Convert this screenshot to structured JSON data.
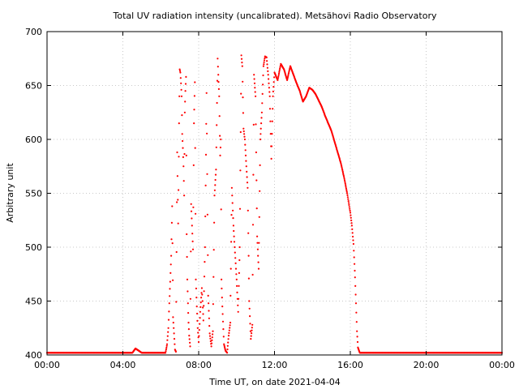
{
  "chart_data": {
    "type": "scatter",
    "title": "Total UV radiation intensity (uncalibrated). Metsähovi Radio Observatory",
    "xlabel": "Time UT, on date 2021-04-04",
    "ylabel": "Arbitrary unit",
    "xlim": [
      "00:00",
      "24:00"
    ],
    "ylim": [
      400,
      700
    ],
    "x_ticks": [
      "00:00",
      "04:00",
      "08:00",
      "12:00",
      "16:00",
      "20:00",
      "00:00"
    ],
    "y_ticks": [
      400,
      450,
      500,
      550,
      600,
      650,
      700
    ],
    "grid": true,
    "legend": "none",
    "marker_color": "#ff0000",
    "series": [
      {
        "points": [
          [
            "00:00",
            402
          ],
          [
            "00:30",
            402
          ],
          [
            "01:00",
            402
          ],
          [
            "01:30",
            402
          ],
          [
            "02:00",
            402
          ],
          [
            "02:30",
            402
          ],
          [
            "03:00",
            402
          ],
          [
            "03:30",
            402
          ],
          [
            "04:00",
            402
          ],
          [
            "04:30",
            402
          ],
          [
            "04:40",
            406
          ],
          [
            "05:00",
            402
          ],
          [
            "05:30",
            402
          ],
          [
            "06:00",
            402
          ],
          [
            "06:15",
            402
          ],
          [
            "06:20",
            410
          ],
          [
            "06:24",
            425
          ],
          [
            "06:27",
            448
          ],
          [
            "06:30",
            468
          ],
          [
            "06:33",
            492
          ],
          [
            "06:36",
            538
          ],
          [
            "06:39",
            435
          ],
          [
            "06:42",
            420
          ],
          [
            "06:45",
            405
          ],
          [
            "06:48",
            403
          ],
          [
            "06:52",
            588
          ],
          [
            "06:55",
            522
          ],
          [
            "06:58",
            615
          ],
          [
            "07:00",
            665
          ],
          [
            "07:02",
            662
          ],
          [
            "07:04",
            652
          ],
          [
            "07:06",
            640
          ],
          [
            "07:08",
            605
          ],
          [
            "07:10",
            592
          ],
          [
            "07:12",
            575
          ],
          [
            "07:14",
            548
          ],
          [
            "07:16",
            625
          ],
          [
            "07:18",
            645
          ],
          [
            "07:20",
            658
          ],
          [
            "07:22",
            512
          ],
          [
            "07:24",
            470
          ],
          [
            "07:26",
            448
          ],
          [
            "07:28",
            430
          ],
          [
            "07:30",
            418
          ],
          [
            "07:33",
            408
          ],
          [
            "07:36",
            540
          ],
          [
            "07:39",
            520
          ],
          [
            "07:42",
            498
          ],
          [
            "07:45",
            615
          ],
          [
            "07:48",
            653
          ],
          [
            "07:51",
            470
          ],
          [
            "07:54",
            445
          ],
          [
            "07:57",
            425
          ],
          [
            "08:00",
            412
          ],
          [
            "08:05",
            440
          ],
          [
            "08:10",
            462
          ],
          [
            "08:15",
            432
          ],
          [
            "08:20",
            500
          ],
          [
            "08:25",
            643
          ],
          [
            "08:30",
            455
          ],
          [
            "08:35",
            420
          ],
          [
            "08:40",
            408
          ],
          [
            "08:45",
            422
          ],
          [
            "08:50",
            548
          ],
          [
            "08:55",
            572
          ],
          [
            "09:00",
            675
          ],
          [
            "09:02",
            660
          ],
          [
            "09:05",
            640
          ],
          [
            "09:08",
            585
          ],
          [
            "09:10",
            600
          ],
          [
            "09:12",
            470
          ],
          [
            "09:15",
            445
          ],
          [
            "09:20",
            410
          ],
          [
            "09:25",
            404
          ],
          [
            "09:30",
            402
          ],
          [
            "09:35",
            418
          ],
          [
            "09:40",
            430
          ],
          [
            "09:45",
            555
          ],
          [
            "09:50",
            520
          ],
          [
            "09:55",
            495
          ],
          [
            "10:00",
            470
          ],
          [
            "10:05",
            440
          ],
          [
            "10:10",
            500
          ],
          [
            "10:15",
            678
          ],
          [
            "10:18",
            668
          ],
          [
            "10:22",
            610
          ],
          [
            "10:26",
            600
          ],
          [
            "10:30",
            580
          ],
          [
            "10:35",
            555
          ],
          [
            "10:40",
            450
          ],
          [
            "10:45",
            415
          ],
          [
            "10:50",
            428
          ],
          [
            "10:55",
            660
          ],
          [
            "11:00",
            640
          ],
          [
            "11:05",
            510
          ],
          [
            "11:10",
            480
          ],
          [
            "11:15",
            600
          ],
          [
            "11:20",
            625
          ],
          [
            "11:25",
            668
          ],
          [
            "11:30",
            677
          ],
          [
            "11:35",
            676
          ],
          [
            "11:40",
            660
          ],
          [
            "11:45",
            640
          ],
          [
            "11:50",
            582
          ],
          [
            "11:55",
            640
          ],
          [
            "12:00",
            662
          ],
          [
            "12:10",
            655
          ],
          [
            "12:20",
            670
          ],
          [
            "12:30",
            665
          ],
          [
            "12:40",
            655
          ],
          [
            "12:50",
            668
          ],
          [
            "13:00",
            660
          ],
          [
            "13:10",
            652
          ],
          [
            "13:20",
            645
          ],
          [
            "13:30",
            635
          ],
          [
            "13:40",
            640
          ],
          [
            "13:50",
            648
          ],
          [
            "14:00",
            646
          ],
          [
            "14:10",
            642
          ],
          [
            "14:20",
            636
          ],
          [
            "14:30",
            630
          ],
          [
            "14:40",
            622
          ],
          [
            "14:50",
            615
          ],
          [
            "15:00",
            608
          ],
          [
            "15:10",
            598
          ],
          [
            "15:20",
            588
          ],
          [
            "15:30",
            578
          ],
          [
            "15:40",
            565
          ],
          [
            "15:50",
            550
          ],
          [
            "16:00",
            532
          ],
          [
            "16:05",
            520
          ],
          [
            "16:10",
            503
          ],
          [
            "16:15",
            472
          ],
          [
            "16:18",
            448
          ],
          [
            "16:21",
            422
          ],
          [
            "16:24",
            407
          ],
          [
            "16:30",
            402
          ],
          [
            "17:00",
            402
          ],
          [
            "17:30",
            402
          ],
          [
            "18:00",
            402
          ],
          [
            "18:30",
            402
          ],
          [
            "19:00",
            402
          ],
          [
            "19:30",
            402
          ],
          [
            "20:00",
            402
          ],
          [
            "20:30",
            402
          ],
          [
            "21:00",
            402
          ],
          [
            "21:30",
            402
          ],
          [
            "22:00",
            402
          ],
          [
            "22:30",
            402
          ],
          [
            "23:00",
            402
          ],
          [
            "23:30",
            402
          ],
          [
            "24:00",
            402
          ]
        ]
      }
    ]
  }
}
